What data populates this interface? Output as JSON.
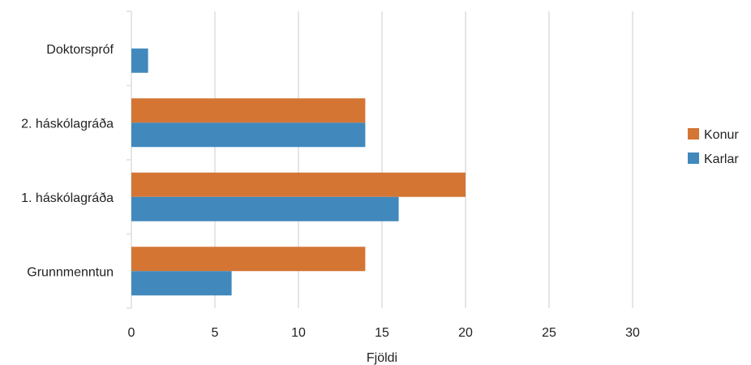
{
  "chart_data": {
    "type": "bar",
    "orientation": "horizontal",
    "categories": [
      "Doktorspróf",
      "2. háskólagráða",
      "1. háskólagráða",
      "Grunnmenntun"
    ],
    "series": [
      {
        "name": "Konur",
        "values": [
          0,
          14,
          20,
          14
        ]
      },
      {
        "name": "Karlar",
        "values": [
          1,
          14,
          16,
          6
        ]
      }
    ],
    "xlabel": "Fjöldi",
    "ylabel": "",
    "xlim": [
      0,
      30
    ],
    "xticks": [
      "0",
      "5",
      "10",
      "15",
      "20",
      "25",
      "30"
    ],
    "grid": true,
    "legend_position": "right",
    "colors": {
      "Konur": "#d47534",
      "Karlar": "#4189bd"
    }
  }
}
